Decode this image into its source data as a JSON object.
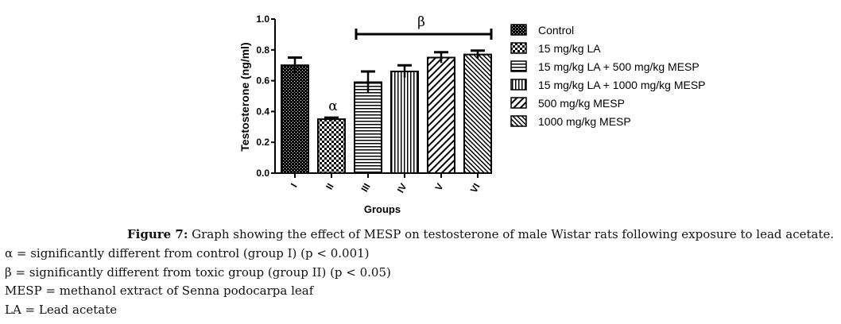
{
  "chart_data": {
    "type": "bar",
    "categories": [
      "I",
      "II",
      "III",
      "IV",
      "V",
      "VI"
    ],
    "values": [
      0.7,
      0.35,
      0.59,
      0.66,
      0.75,
      0.77
    ],
    "errors": [
      0.05,
      0.01,
      0.07,
      0.04,
      0.035,
      0.025
    ],
    "series_names": [
      "Control",
      "15 mg/kg LA",
      "15 mg/kg LA + 500 mg/kg MESP",
      "15 mg/kg LA + 1000 mg/kg MESP",
      "500 mg/kg MESP",
      "1000 mg/kg MESP"
    ],
    "ylabel": "Testosterone (ng/ml)",
    "xlabel": "Groups",
    "ylim": [
      0.0,
      1.0
    ],
    "yticks": [
      "0.0",
      "0.2",
      "0.4",
      "0.6",
      "0.8",
      "1.0"
    ],
    "annotations": {
      "alpha": "α",
      "beta": "β"
    }
  },
  "caption": {
    "figure_label": "Figure 7:",
    "figure_text": " Graph showing the effect of MESP on testosterone of male Wistar rats following exposure to lead acetate.",
    "notes": [
      "α = significantly different from control (group I) (p < 0.001)",
      "β = significantly different from toxic group (group II) (p < 0.05)",
      "MESP = methanol extract of Senna podocarpa leaf",
      "LA = Lead acetate"
    ]
  }
}
